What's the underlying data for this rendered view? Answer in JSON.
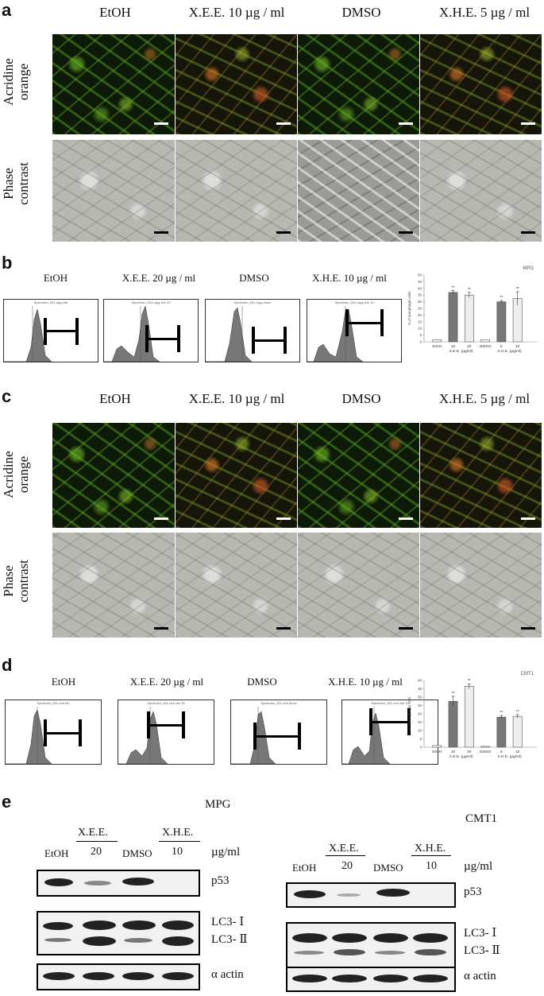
{
  "panel_a": {
    "label": "a",
    "headers": [
      "EtOH",
      "X.E.E. 10 µg / ml",
      "DMSO",
      "X.H.E. 5 µg / ml"
    ],
    "row_labels": [
      [
        "Acridine",
        "orange"
      ],
      [
        "Phase",
        "contrast"
      ]
    ]
  },
  "panel_b": {
    "label": "b",
    "headers": [
      "EtOH",
      "X.E.E. 20 µg / ml",
      "DMSO",
      "X.H.E. 10 µg / ml"
    ],
    "flow_titles": [
      "Specimen_001-mpg eth",
      "Specimen_001-mpg xee 20",
      "Specimen_001-mpg dmso",
      "Specimen_001-mpg xhe 10"
    ],
    "chart_data": {
      "type": "bar",
      "title": "MPG",
      "ylabel": "% of autophagic cells",
      "categories": [
        "EtOH",
        "10",
        "20",
        "DMSO",
        "5",
        "10"
      ],
      "group_labels": [
        "X.E.E. (µg/ml)",
        "X.H.E. (µg/ml)"
      ],
      "values": [
        1.5,
        37,
        35,
        1.5,
        30,
        32.5
      ],
      "errors": [
        0,
        1.5,
        2,
        0,
        1,
        5
      ],
      "sig": [
        "",
        "**",
        "**",
        "",
        "**",
        "**"
      ],
      "ylim": [
        0,
        50
      ],
      "yticks": [
        "0",
        "5",
        "10",
        "15",
        "20",
        "25",
        "30",
        "35",
        "40",
        "45",
        "50"
      ]
    }
  },
  "panel_c": {
    "label": "c",
    "headers": [
      "EtOH",
      "X.E.E. 10 µg / ml",
      "DMSO",
      "X.H.E. 5 µg / ml"
    ],
    "row_labels": [
      [
        "Acridine",
        "orange"
      ],
      [
        "Phase",
        "contrast"
      ]
    ]
  },
  "panel_d": {
    "label": "d",
    "headers": [
      "EtOH",
      "X.E.E. 20 µg / ml",
      "DMSO",
      "X.H.E. 10 µg / ml"
    ],
    "flow_titles": [
      "Specimen_001-cmt eth",
      "Specimen_001-cmt xee 20",
      "Specimen_001-cmt dmso",
      "Specimen_001-cmt xhe 10"
    ],
    "chart_data": {
      "type": "bar",
      "title": "CMT1",
      "ylabel": "% of autophagic cells",
      "categories": [
        "EtOH",
        "10",
        "20",
        "DMSO",
        "5",
        "10"
      ],
      "group_labels": [
        "X.E.E. (µg/ml)",
        "X.H.E. (µg/ml)"
      ],
      "values": [
        1,
        27.5,
        36.5,
        0.5,
        18,
        18.5
      ],
      "errors": [
        0,
        3,
        1.5,
        0,
        1,
        1
      ],
      "sig": [
        "",
        "**",
        "**",
        "",
        "**",
        "**"
      ],
      "ylim": [
        0,
        40
      ],
      "yticks": [
        "0",
        "5",
        "10",
        "15",
        "20",
        "25",
        "30",
        "35",
        "40"
      ]
    }
  },
  "panel_e": {
    "label": "e",
    "mpg": {
      "title": "MPG",
      "lanes": [
        "EtOH",
        "20",
        "DMSO",
        "10"
      ],
      "groups": [
        "X.E.E.",
        "X.H.E."
      ],
      "unit": "µg/ml",
      "proteins": [
        "p53",
        "LC3- Ⅰ",
        "LC3- Ⅱ",
        "α actin"
      ]
    },
    "cmt": {
      "title": "CMT1",
      "lanes": [
        "EtOH",
        "20",
        "DMSO",
        "10"
      ],
      "groups": [
        "X.E.E.",
        "X.H.E."
      ],
      "unit": "µg/ml",
      "proteins": [
        "p53",
        "LC3- Ⅰ",
        "LC3- Ⅱ",
        "α actin"
      ]
    }
  }
}
